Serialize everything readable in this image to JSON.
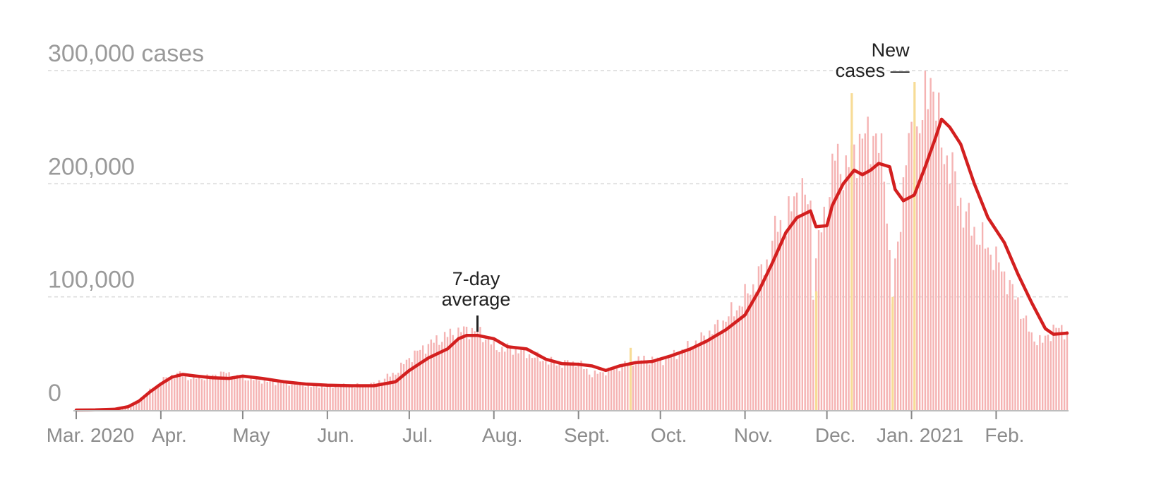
{
  "chart_data": {
    "type": "bar",
    "y_axis": {
      "ylim": [
        0,
        300000
      ],
      "ticks": [
        0,
        100000,
        200000,
        300000
      ],
      "tick_labels": [
        "0",
        "100,000",
        "200,000",
        "300,000 cases"
      ],
      "grid": true
    },
    "x_axis": {
      "start_date": "2020-03-01",
      "end_date": "2021-02-27",
      "tick_dates": [
        "2020-03-01",
        "2020-04-01",
        "2020-05-01",
        "2020-06-01",
        "2020-07-01",
        "2020-08-01",
        "2020-09-01",
        "2020-10-01",
        "2020-11-01",
        "2020-12-01",
        "2021-01-01",
        "2021-02-01"
      ],
      "tick_labels": [
        "Mar. 2020",
        "Apr.",
        "May",
        "Jun.",
        "Jul.",
        "Aug.",
        "Sept.",
        "Oct.",
        "Nov.",
        "Dec.",
        "Jan. 2021",
        "Feb."
      ]
    },
    "series": [
      {
        "name": "New cases",
        "kind": "daily bars",
        "color": "#f5b3b3",
        "values_by_date": [
          [
            "2020-03-01",
            100
          ],
          [
            "2020-03-08",
            150
          ],
          [
            "2020-03-15",
            700
          ],
          [
            "2020-03-20",
            3500
          ],
          [
            "2020-03-24",
            9000
          ],
          [
            "2020-03-28",
            17000
          ],
          [
            "2020-04-01",
            25000
          ],
          [
            "2020-04-04",
            30000
          ],
          [
            "2020-04-08",
            32000
          ],
          [
            "2020-04-12",
            28000
          ],
          [
            "2020-04-18",
            29000
          ],
          [
            "2020-04-24",
            33000
          ],
          [
            "2020-04-30",
            29000
          ],
          [
            "2020-05-08",
            26000
          ],
          [
            "2020-05-16",
            24000
          ],
          [
            "2020-05-24",
            22000
          ],
          [
            "2020-06-01",
            21000
          ],
          [
            "2020-06-10",
            21000
          ],
          [
            "2020-06-18",
            23000
          ],
          [
            "2020-06-26",
            33000
          ],
          [
            "2020-07-01",
            46000
          ],
          [
            "2020-07-08",
            58000
          ],
          [
            "2020-07-15",
            66000
          ],
          [
            "2020-07-20",
            70000
          ],
          [
            "2020-07-24",
            71000
          ],
          [
            "2020-07-28",
            66000
          ],
          [
            "2020-08-02",
            55000
          ],
          [
            "2020-08-10",
            53000
          ],
          [
            "2020-08-18",
            45000
          ],
          [
            "2020-08-24",
            41000
          ],
          [
            "2020-09-01",
            42000
          ],
          [
            "2020-09-06",
            31000
          ],
          [
            "2020-09-12",
            35000
          ],
          [
            "2020-09-18",
            41000
          ],
          [
            "2020-09-24",
            45000
          ],
          [
            "2020-10-01",
            44000
          ],
          [
            "2020-10-08",
            51000
          ],
          [
            "2020-10-15",
            61000
          ],
          [
            "2020-10-22",
            74000
          ],
          [
            "2020-10-29",
            90000
          ],
          [
            "2020-11-04",
            110000
          ],
          [
            "2020-11-09",
            130000
          ],
          [
            "2020-11-13",
            165000
          ],
          [
            "2020-11-16",
            162000
          ],
          [
            "2020-11-20",
            195000
          ],
          [
            "2020-11-25",
            180000
          ],
          [
            "2020-11-26",
            110000
          ],
          [
            "2020-11-28",
            150000
          ],
          [
            "2020-12-01",
            180000
          ],
          [
            "2020-12-04",
            225000
          ],
          [
            "2020-12-08",
            210000
          ],
          [
            "2020-12-11",
            230000
          ],
          [
            "2020-12-15",
            240000
          ],
          [
            "2020-12-18",
            245000
          ],
          [
            "2020-12-22",
            215000
          ],
          [
            "2020-12-25",
            97000
          ],
          [
            "2020-12-30",
            225000
          ],
          [
            "2021-01-02",
            245000
          ],
          [
            "2021-01-05",
            255000
          ],
          [
            "2021-01-08",
            300000
          ],
          [
            "2021-01-12",
            235000
          ],
          [
            "2021-01-16",
            210000
          ],
          [
            "2021-01-20",
            175000
          ],
          [
            "2021-01-25",
            155000
          ],
          [
            "2021-01-30",
            140000
          ],
          [
            "2021-02-04",
            120000
          ],
          [
            "2021-02-09",
            95000
          ],
          [
            "2021-02-14",
            65000
          ],
          [
            "2021-02-18",
            60000
          ],
          [
            "2021-02-22",
            72000
          ],
          [
            "2021-02-27",
            70000
          ]
        ]
      },
      {
        "name": "7-day average",
        "kind": "line",
        "color": "#d31f1f",
        "values_by_date": [
          [
            "2020-03-01",
            30
          ],
          [
            "2020-03-08",
            150
          ],
          [
            "2020-03-15",
            700
          ],
          [
            "2020-03-20",
            3000
          ],
          [
            "2020-03-24",
            8000
          ],
          [
            "2020-03-28",
            16000
          ],
          [
            "2020-04-01",
            23000
          ],
          [
            "2020-04-05",
            29000
          ],
          [
            "2020-04-09",
            31500
          ],
          [
            "2020-04-14",
            30000
          ],
          [
            "2020-04-20",
            28500
          ],
          [
            "2020-04-26",
            28000
          ],
          [
            "2020-05-01",
            30000
          ],
          [
            "2020-05-08",
            28000
          ],
          [
            "2020-05-16",
            25000
          ],
          [
            "2020-05-24",
            23000
          ],
          [
            "2020-06-01",
            22000
          ],
          [
            "2020-06-10",
            21500
          ],
          [
            "2020-06-18",
            21500
          ],
          [
            "2020-06-26",
            25000
          ],
          [
            "2020-07-01",
            35000
          ],
          [
            "2020-07-08",
            46000
          ],
          [
            "2020-07-15",
            54000
          ],
          [
            "2020-07-19",
            63000
          ],
          [
            "2020-07-22",
            66000
          ],
          [
            "2020-07-26",
            66000
          ],
          [
            "2020-08-01",
            63000
          ],
          [
            "2020-08-06",
            56000
          ],
          [
            "2020-08-13",
            54000
          ],
          [
            "2020-08-20",
            45000
          ],
          [
            "2020-08-26",
            41000
          ],
          [
            "2020-09-01",
            40500
          ],
          [
            "2020-09-06",
            39000
          ],
          [
            "2020-09-11",
            35000
          ],
          [
            "2020-09-16",
            39000
          ],
          [
            "2020-09-22",
            42000
          ],
          [
            "2020-09-28",
            43000
          ],
          [
            "2020-10-05",
            48000
          ],
          [
            "2020-10-12",
            54000
          ],
          [
            "2020-10-18",
            61000
          ],
          [
            "2020-10-25",
            71000
          ],
          [
            "2020-11-01",
            84000
          ],
          [
            "2020-11-06",
            105000
          ],
          [
            "2020-11-11",
            130000
          ],
          [
            "2020-11-16",
            157000
          ],
          [
            "2020-11-20",
            170000
          ],
          [
            "2020-11-25",
            176000
          ],
          [
            "2020-11-27",
            162000
          ],
          [
            "2020-12-01",
            163000
          ],
          [
            "2020-12-03",
            181000
          ],
          [
            "2020-12-07",
            200000
          ],
          [
            "2020-12-11",
            212000
          ],
          [
            "2020-12-14",
            208000
          ],
          [
            "2020-12-17",
            212000
          ],
          [
            "2020-12-20",
            218000
          ],
          [
            "2020-12-24",
            215000
          ],
          [
            "2020-12-26",
            195000
          ],
          [
            "2020-12-29",
            185000
          ],
          [
            "2021-01-02",
            190000
          ],
          [
            "2021-01-06",
            215000
          ],
          [
            "2021-01-10",
            242000
          ],
          [
            "2021-01-12",
            257000
          ],
          [
            "2021-01-15",
            250000
          ],
          [
            "2021-01-19",
            235000
          ],
          [
            "2021-01-24",
            200000
          ],
          [
            "2021-01-29",
            170000
          ],
          [
            "2021-02-04",
            148000
          ],
          [
            "2021-02-09",
            120000
          ],
          [
            "2021-02-14",
            95000
          ],
          [
            "2021-02-19",
            72000
          ],
          [
            "2021-02-22",
            67000
          ],
          [
            "2021-02-27",
            68000
          ]
        ]
      }
    ],
    "highlight_bars": {
      "color": "#f7dc96",
      "values_by_date": [
        [
          "2020-09-20",
          55000
        ],
        [
          "2020-11-27",
          105000
        ],
        [
          "2020-12-10",
          280000
        ],
        [
          "2020-12-25",
          100000
        ],
        [
          "2021-01-02",
          290000
        ]
      ]
    },
    "annotations": [
      {
        "lines": [
          "7-day",
          "average"
        ],
        "date": "2020-07-26",
        "value": 66000
      },
      {
        "lines": [
          "New",
          "cases —"
        ],
        "date": "2021-01-08",
        "value": 300000
      }
    ]
  }
}
